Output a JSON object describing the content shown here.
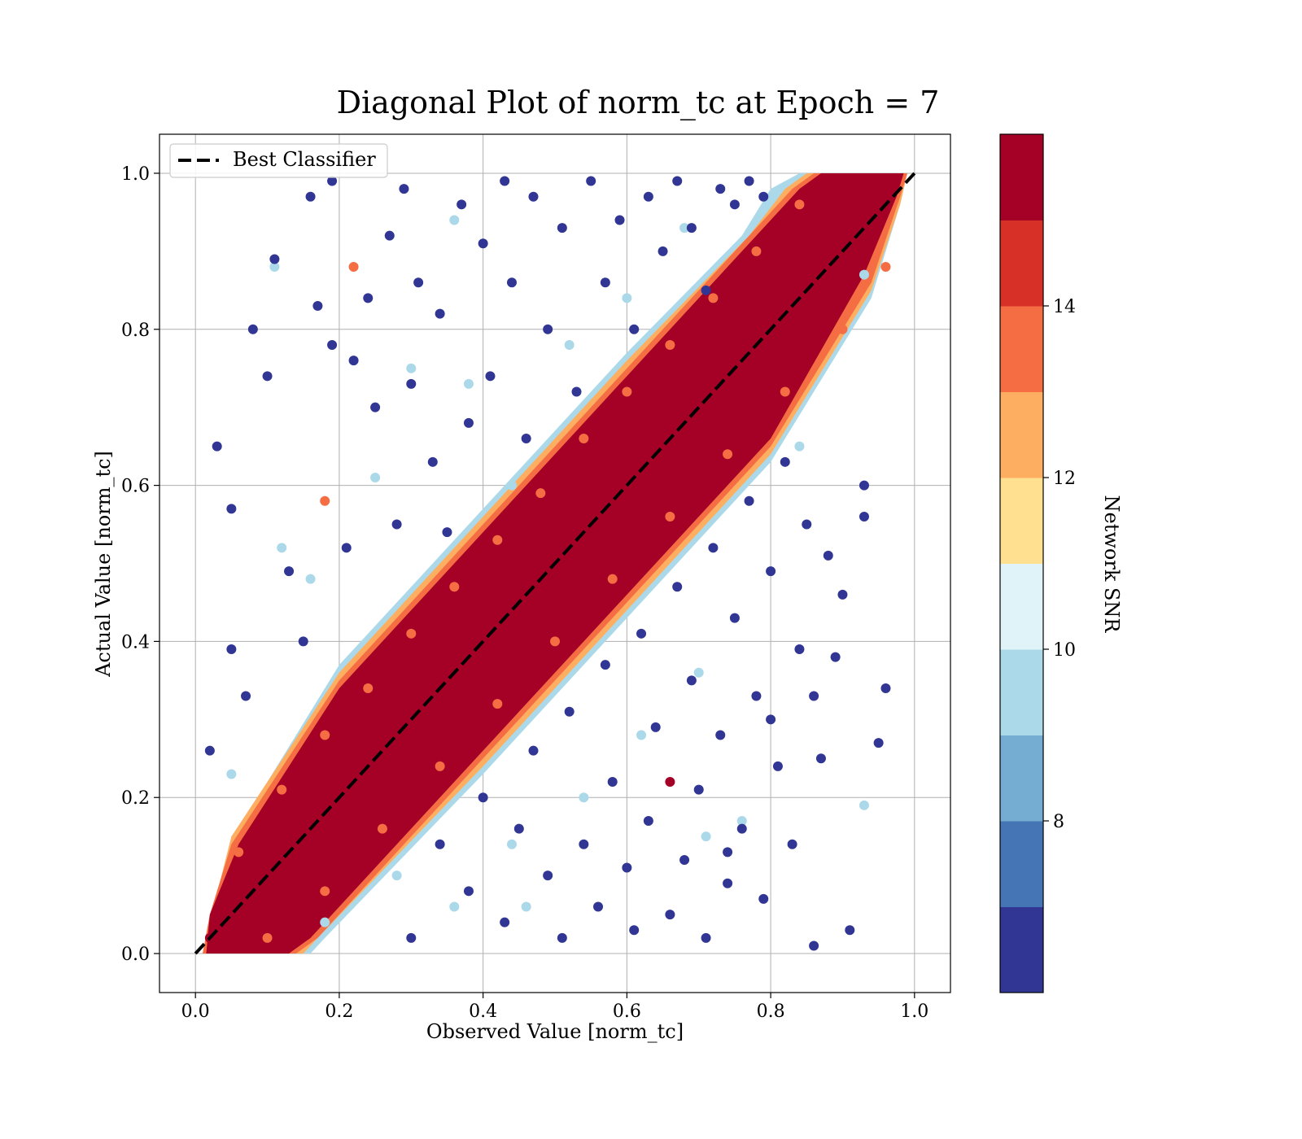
{
  "chart_data": {
    "type": "scatter",
    "title": "Diagonal Plot of norm_tc at Epoch = 7",
    "xlabel": "Observed Value [norm_tc]",
    "ylabel": "Actual Value [norm_tc]",
    "xlim": [
      -0.05,
      1.05
    ],
    "ylim": [
      -0.05,
      1.05
    ],
    "x_ticks": [
      "0.0",
      "0.2",
      "0.4",
      "0.6",
      "0.8",
      "1.0"
    ],
    "y_ticks": [
      "0.0",
      "0.2",
      "0.4",
      "0.6",
      "0.8",
      "1.0"
    ],
    "grid": true,
    "legend": {
      "location": "upper-left",
      "entries": [
        "Best Classifier"
      ]
    },
    "reference_line": {
      "name": "Best Classifier",
      "style": "dashed",
      "color": "#000000",
      "x": [
        0,
        1
      ],
      "y": [
        0,
        1
      ]
    },
    "colorbar": {
      "label": "Network SNR",
      "range": [
        6.0,
        16.0
      ],
      "ticks": [
        8,
        10,
        12,
        14
      ],
      "tick_labels": [
        "8",
        "10",
        "12",
        "14"
      ],
      "colors": [
        "#313695",
        "#4575b4",
        "#74add1",
        "#abd9e9",
        "#e0f3f8",
        "#fee090",
        "#fdae61",
        "#f46d43",
        "#d73027",
        "#a50026"
      ]
    },
    "series": [
      {
        "description": "dense core band around the diagonal, network SNR above 15",
        "snr": 15.5,
        "color": "#a50026",
        "points": [
          [
            0.02,
            0.02
          ],
          [
            0.05,
            0.06
          ],
          [
            0.08,
            0.1
          ],
          [
            0.1,
            0.15
          ],
          [
            0.12,
            0.1
          ],
          [
            0.15,
            0.17
          ],
          [
            0.18,
            0.22
          ],
          [
            0.2,
            0.18
          ],
          [
            0.22,
            0.26
          ],
          [
            0.25,
            0.24
          ],
          [
            0.28,
            0.3
          ],
          [
            0.3,
            0.35
          ],
          [
            0.32,
            0.28
          ],
          [
            0.35,
            0.38
          ],
          [
            0.38,
            0.42
          ],
          [
            0.4,
            0.4
          ],
          [
            0.42,
            0.46
          ],
          [
            0.45,
            0.44
          ],
          [
            0.48,
            0.52
          ],
          [
            0.5,
            0.5
          ],
          [
            0.52,
            0.56
          ],
          [
            0.55,
            0.54
          ],
          [
            0.58,
            0.62
          ],
          [
            0.6,
            0.6
          ],
          [
            0.62,
            0.66
          ],
          [
            0.65,
            0.64
          ],
          [
            0.68,
            0.72
          ],
          [
            0.7,
            0.7
          ],
          [
            0.72,
            0.76
          ],
          [
            0.75,
            0.74
          ],
          [
            0.78,
            0.82
          ],
          [
            0.8,
            0.8
          ],
          [
            0.82,
            0.86
          ],
          [
            0.85,
            0.84
          ],
          [
            0.88,
            0.92
          ],
          [
            0.9,
            0.9
          ],
          [
            0.92,
            0.96
          ],
          [
            0.95,
            0.97
          ],
          [
            0.97,
            0.99
          ],
          [
            0.66,
            0.22
          ]
        ]
      },
      {
        "description": "orange/peach edge points of the band, SNR 12-15",
        "snr": 13.5,
        "color": "#f46d43",
        "points": [
          [
            0.06,
            0.13
          ],
          [
            0.12,
            0.21
          ],
          [
            0.18,
            0.28
          ],
          [
            0.24,
            0.34
          ],
          [
            0.3,
            0.41
          ],
          [
            0.36,
            0.47
          ],
          [
            0.42,
            0.53
          ],
          [
            0.48,
            0.59
          ],
          [
            0.54,
            0.66
          ],
          [
            0.6,
            0.72
          ],
          [
            0.66,
            0.78
          ],
          [
            0.72,
            0.84
          ],
          [
            0.78,
            0.9
          ],
          [
            0.84,
            0.96
          ],
          [
            0.1,
            0.02
          ],
          [
            0.18,
            0.08
          ],
          [
            0.26,
            0.16
          ],
          [
            0.34,
            0.24
          ],
          [
            0.42,
            0.32
          ],
          [
            0.5,
            0.4
          ],
          [
            0.58,
            0.48
          ],
          [
            0.66,
            0.56
          ],
          [
            0.74,
            0.64
          ],
          [
            0.82,
            0.72
          ],
          [
            0.9,
            0.8
          ],
          [
            0.96,
            0.88
          ],
          [
            0.18,
            0.58
          ],
          [
            0.22,
            0.88
          ]
        ]
      },
      {
        "description": "light-blue/yellow intermediate points near the band, SNR 9-12",
        "snr": 10.5,
        "color": "#abd9e9",
        "points": [
          [
            0.05,
            0.23
          ],
          [
            0.12,
            0.52
          ],
          [
            0.11,
            0.88
          ],
          [
            0.16,
            0.48
          ],
          [
            0.25,
            0.61
          ],
          [
            0.36,
            0.94
          ],
          [
            0.38,
            0.73
          ],
          [
            0.44,
            0.6
          ],
          [
            0.52,
            0.78
          ],
          [
            0.6,
            0.84
          ],
          [
            0.68,
            0.93
          ],
          [
            0.18,
            0.04
          ],
          [
            0.28,
            0.1
          ],
          [
            0.36,
            0.06
          ],
          [
            0.44,
            0.14
          ],
          [
            0.54,
            0.2
          ],
          [
            0.62,
            0.28
          ],
          [
            0.7,
            0.36
          ],
          [
            0.76,
            0.17
          ],
          [
            0.84,
            0.65
          ],
          [
            0.93,
            0.87
          ],
          [
            0.93,
            0.19
          ],
          [
            0.71,
            0.15
          ],
          [
            0.3,
            0.75
          ],
          [
            0.46,
            0.06
          ]
        ]
      },
      {
        "description": "dark-blue low-SNR outliers scattered away from the diagonal, SNR below 8",
        "snr": 6.8,
        "color": "#313695",
        "points": [
          [
            0.02,
            0.26
          ],
          [
            0.03,
            0.65
          ],
          [
            0.05,
            0.57
          ],
          [
            0.05,
            0.39
          ],
          [
            0.07,
            0.33
          ],
          [
            0.08,
            0.8
          ],
          [
            0.1,
            0.74
          ],
          [
            0.11,
            0.89
          ],
          [
            0.13,
            0.49
          ],
          [
            0.15,
            0.4
          ],
          [
            0.16,
            0.97
          ],
          [
            0.17,
            0.83
          ],
          [
            0.19,
            0.78
          ],
          [
            0.19,
            0.99
          ],
          [
            0.21,
            0.52
          ],
          [
            0.22,
            0.76
          ],
          [
            0.24,
            0.84
          ],
          [
            0.25,
            0.7
          ],
          [
            0.27,
            0.92
          ],
          [
            0.28,
            0.55
          ],
          [
            0.29,
            0.98
          ],
          [
            0.3,
            0.73
          ],
          [
            0.31,
            0.86
          ],
          [
            0.33,
            0.63
          ],
          [
            0.34,
            0.82
          ],
          [
            0.35,
            0.54
          ],
          [
            0.37,
            0.96
          ],
          [
            0.38,
            0.68
          ],
          [
            0.4,
            0.91
          ],
          [
            0.41,
            0.74
          ],
          [
            0.43,
            0.99
          ],
          [
            0.44,
            0.86
          ],
          [
            0.46,
            0.66
          ],
          [
            0.47,
            0.97
          ],
          [
            0.49,
            0.8
          ],
          [
            0.51,
            0.93
          ],
          [
            0.53,
            0.72
          ],
          [
            0.55,
            0.99
          ],
          [
            0.57,
            0.86
          ],
          [
            0.59,
            0.94
          ],
          [
            0.61,
            0.8
          ],
          [
            0.63,
            0.97
          ],
          [
            0.65,
            0.9
          ],
          [
            0.67,
            0.99
          ],
          [
            0.69,
            0.93
          ],
          [
            0.71,
            0.85
          ],
          [
            0.73,
            0.98
          ],
          [
            0.75,
            0.96
          ],
          [
            0.77,
            0.99
          ],
          [
            0.79,
            0.97
          ],
          [
            0.3,
            0.02
          ],
          [
            0.34,
            0.14
          ],
          [
            0.38,
            0.08
          ],
          [
            0.4,
            0.2
          ],
          [
            0.43,
            0.04
          ],
          [
            0.45,
            0.16
          ],
          [
            0.47,
            0.26
          ],
          [
            0.49,
            0.1
          ],
          [
            0.51,
            0.02
          ],
          [
            0.52,
            0.31
          ],
          [
            0.54,
            0.14
          ],
          [
            0.56,
            0.06
          ],
          [
            0.57,
            0.37
          ],
          [
            0.58,
            0.22
          ],
          [
            0.6,
            0.11
          ],
          [
            0.61,
            0.03
          ],
          [
            0.62,
            0.41
          ],
          [
            0.63,
            0.17
          ],
          [
            0.64,
            0.29
          ],
          [
            0.66,
            0.05
          ],
          [
            0.67,
            0.47
          ],
          [
            0.68,
            0.12
          ],
          [
            0.69,
            0.35
          ],
          [
            0.7,
            0.21
          ],
          [
            0.71,
            0.02
          ],
          [
            0.72,
            0.52
          ],
          [
            0.73,
            0.28
          ],
          [
            0.74,
            0.09
          ],
          [
            0.75,
            0.43
          ],
          [
            0.76,
            0.16
          ],
          [
            0.77,
            0.58
          ],
          [
            0.78,
            0.33
          ],
          [
            0.79,
            0.07
          ],
          [
            0.8,
            0.49
          ],
          [
            0.81,
            0.24
          ],
          [
            0.82,
            0.63
          ],
          [
            0.83,
            0.14
          ],
          [
            0.84,
            0.39
          ],
          [
            0.85,
            0.55
          ],
          [
            0.86,
            0.01
          ],
          [
            0.87,
            0.25
          ],
          [
            0.88,
            0.51
          ],
          [
            0.89,
            0.38
          ],
          [
            0.9,
            0.46
          ],
          [
            0.91,
            0.03
          ],
          [
            0.93,
            0.6
          ],
          [
            0.95,
            0.27
          ],
          [
            0.96,
            0.34
          ],
          [
            0.93,
            0.56
          ],
          [
            0.86,
            0.33
          ],
          [
            0.8,
            0.3
          ],
          [
            0.74,
            0.13
          ]
        ]
      }
    ]
  }
}
